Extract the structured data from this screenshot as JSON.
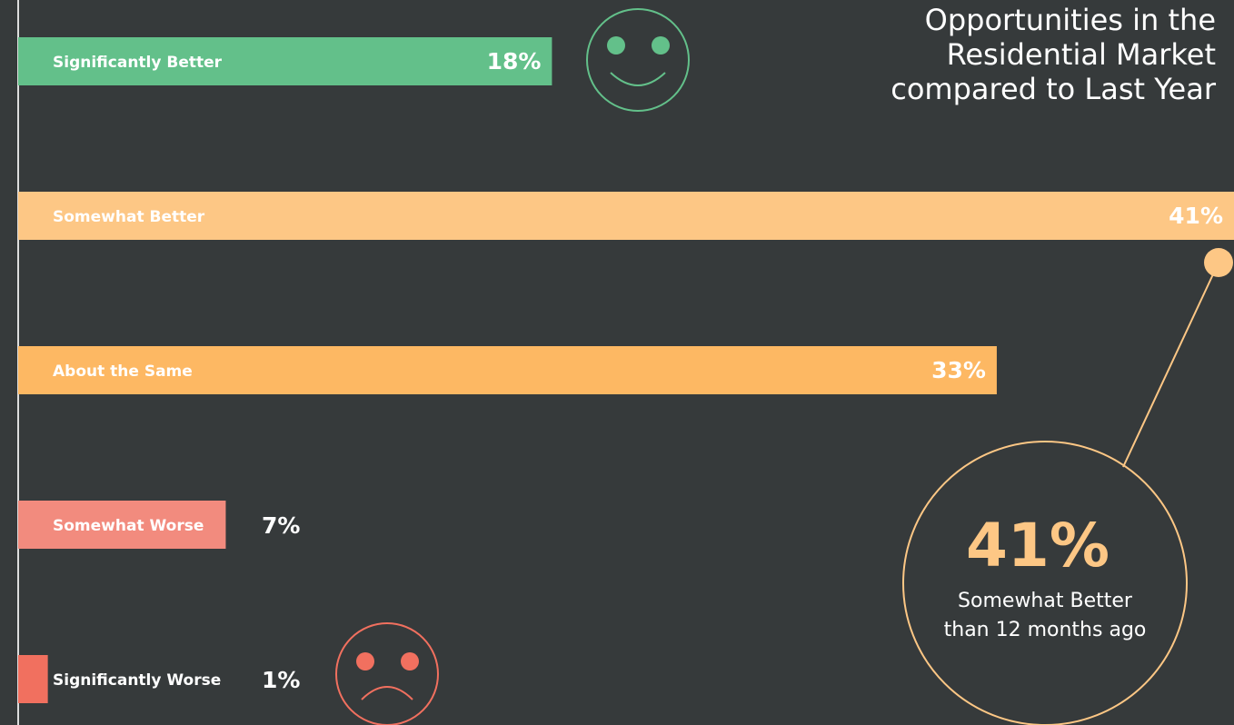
{
  "chart_data": {
    "type": "bar",
    "orientation": "horizontal",
    "title": [
      "Opportunities in the",
      "Residential Market",
      "compared to Last Year"
    ],
    "categories": [
      "Significantly Better",
      "Somewhat Better",
      "About the Same",
      "Somewhat Worse",
      "Significantly Worse"
    ],
    "values": [
      18,
      41,
      33,
      7,
      1
    ],
    "value_labels": [
      "18%",
      "41%",
      "33%",
      "7%",
      "1%"
    ],
    "colors": [
      "#63c08a",
      "#fdc785",
      "#fdb863",
      "#f28b7e",
      "#f1705f"
    ],
    "annotation": {
      "category": 1,
      "text": [
        "Somewhat Better",
        "than 12 months ago"
      ]
    }
  }
}
